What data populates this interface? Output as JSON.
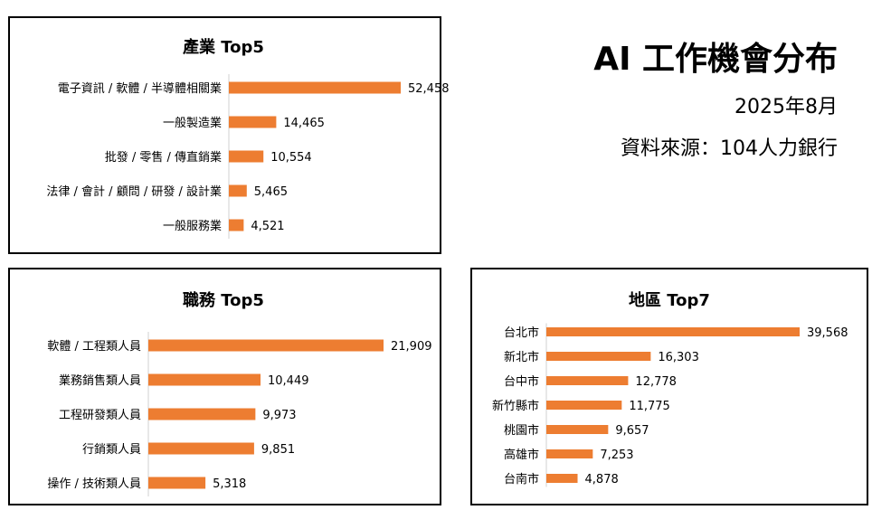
{
  "header": {
    "title": "AI 工作機會分布",
    "date": "2025年8月",
    "source": "資料來源：104人力銀行"
  },
  "colors": {
    "bar": "#ED7D31"
  },
  "chart_data": [
    {
      "type": "bar",
      "orientation": "horizontal",
      "title": "產業 Top5",
      "categories": [
        "電子資訊 / 軟體 / 半導體相關業",
        "一般製造業",
        "批發 / 零售 / 傳直銷業",
        "法律 / 會計 / 顧問 / 研發 / 設計業",
        "一般服務業"
      ],
      "values": [
        52458,
        14465,
        10554,
        5465,
        4521
      ],
      "value_labels": [
        "52,458",
        "14,465",
        "10,554",
        "5,465",
        "4,521"
      ]
    },
    {
      "type": "bar",
      "orientation": "horizontal",
      "title": "職務 Top5",
      "categories": [
        "軟體 / 工程類人員",
        "業務銷售類人員",
        "工程研發類人員",
        "行銷類人員",
        "操作 / 技術類人員"
      ],
      "values": [
        21909,
        10449,
        9973,
        9851,
        5318
      ],
      "value_labels": [
        "21,909",
        "10,449",
        "9,973",
        "9,851",
        "5,318"
      ]
    },
    {
      "type": "bar",
      "orientation": "horizontal",
      "title": "地區 Top7",
      "categories": [
        "台北市",
        "新北市",
        "台中市",
        "新竹縣市",
        "桃園市",
        "高雄市",
        "台南市"
      ],
      "values": [
        39568,
        16303,
        12778,
        11775,
        9657,
        7253,
        4878
      ],
      "value_labels": [
        "39,568",
        "16,303",
        "12,778",
        "11,775",
        "9,657",
        "7,253",
        "4,878"
      ]
    }
  ]
}
